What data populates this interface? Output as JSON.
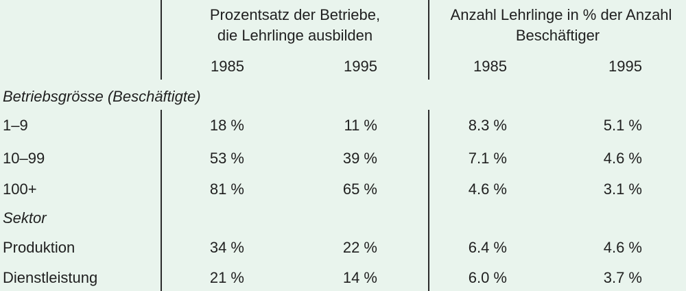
{
  "header": {
    "group1_line1": "Prozentsatz der Betriebe,",
    "group1_line2": "die Lehrlinge ausbilden",
    "group2_line1": "Anzahl Lehrlinge in % der Anzahl",
    "group2_line2": "Beschäftiger",
    "years": [
      "1985",
      "1995",
      "1985",
      "1995"
    ]
  },
  "sections": [
    {
      "title": "Betriebsgrösse (Beschäftigte)",
      "rows": [
        {
          "label": "1–9",
          "values": [
            "18 %",
            "11 %",
            "8.3 %",
            "5.1 %"
          ]
        },
        {
          "label": "10–99",
          "values": [
            "53 %",
            "39 %",
            "7.1 %",
            "4.6 %"
          ]
        },
        {
          "label": "100+",
          "values": [
            "81 %",
            "65 %",
            "4.6 %",
            "3.1 %"
          ]
        }
      ]
    },
    {
      "title": "Sektor",
      "rows": [
        {
          "label": "Produktion",
          "values": [
            "34 %",
            "22 %",
            "6.4 %",
            "4.6 %"
          ]
        },
        {
          "label": "Dienstleistung",
          "values": [
            "21 %",
            "14 %",
            "6.0 %",
            "3.7 %"
          ]
        }
      ]
    }
  ]
}
